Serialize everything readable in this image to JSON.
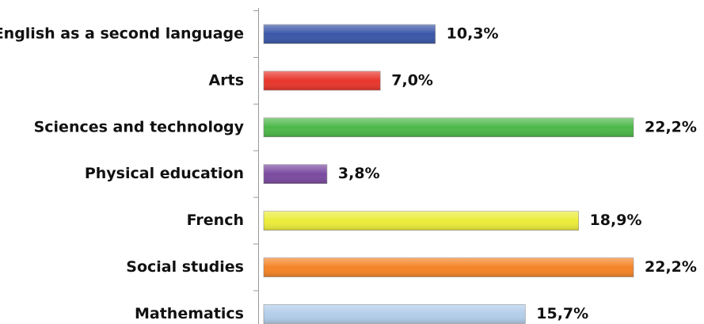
{
  "chart_data": {
    "type": "hbar",
    "categories": [
      "English as a second language",
      "Arts",
      "Sciences and technology",
      "Physical education",
      "French",
      "Social studies",
      "Mathematics"
    ],
    "values": [
      10.3,
      7.0,
      22.2,
      3.8,
      18.9,
      22.2,
      15.7
    ],
    "value_labels": [
      "10,3%",
      "7,0%",
      "22,2%",
      "3,8%",
      "18,9%",
      "22,2%",
      "15,7%"
    ],
    "colors": [
      "#3a57a8",
      "#e8352b",
      "#4cb848",
      "#7b4aa0",
      "#ecec3a",
      "#f58426",
      "#b3cdea"
    ]
  }
}
